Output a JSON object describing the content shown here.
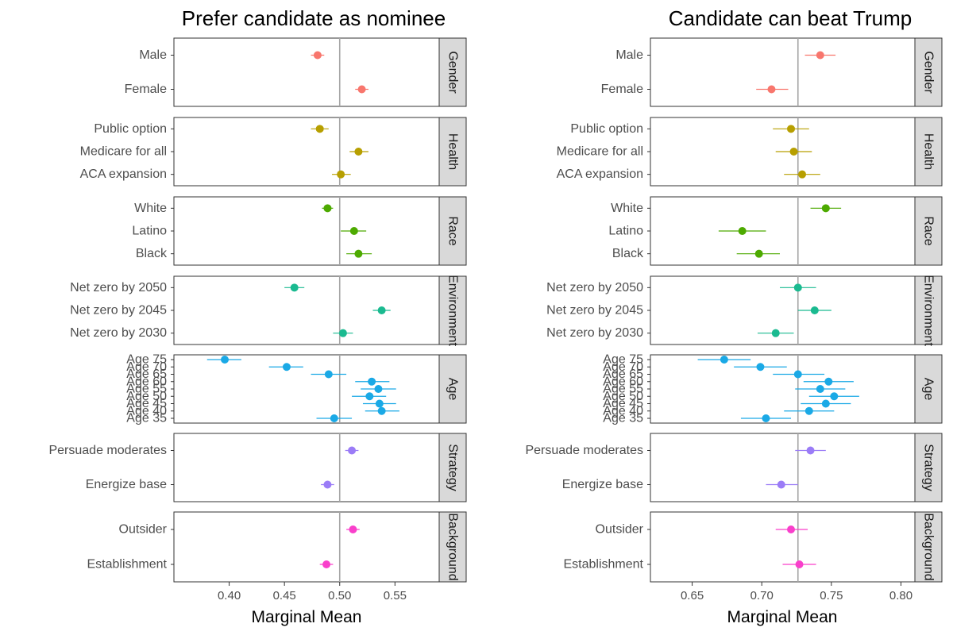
{
  "chart_data": [
    {
      "type": "scatter",
      "title": "Prefer candidate as nominee",
      "xlabel": "Marginal Mean",
      "ylabel": "",
      "xlim": [
        0.35,
        0.59
      ],
      "xticks": [
        0.4,
        0.45,
        0.5,
        0.55
      ],
      "xtick_labels": [
        "0.40",
        "0.45",
        "0.50",
        "0.55"
      ],
      "reference_line": 0.5,
      "grid": false,
      "facets": [
        {
          "name": "Gender",
          "color": "#F8766D",
          "levels": [
            {
              "label": "Male",
              "mean": 0.48,
              "lo": 0.474,
              "hi": 0.486
            },
            {
              "label": "Female",
              "mean": 0.52,
              "lo": 0.514,
              "hi": 0.526
            }
          ]
        },
        {
          "name": "Health",
          "color": "#B79F00",
          "levels": [
            {
              "label": "Public option",
              "mean": 0.482,
              "lo": 0.474,
              "hi": 0.49
            },
            {
              "label": "Medicare for all",
              "mean": 0.517,
              "lo": 0.509,
              "hi": 0.526
            },
            {
              "label": "ACA expansion",
              "mean": 0.501,
              "lo": 0.493,
              "hi": 0.51
            }
          ]
        },
        {
          "name": "Race",
          "color": "#4DAA00",
          "levels": [
            {
              "label": "White",
              "mean": 0.489,
              "lo": 0.484,
              "hi": 0.494
            },
            {
              "label": "Latino",
              "mean": 0.513,
              "lo": 0.501,
              "hi": 0.524
            },
            {
              "label": "Black",
              "mean": 0.517,
              "lo": 0.506,
              "hi": 0.529
            }
          ]
        },
        {
          "name": "Environment",
          "color": "#1ABA90",
          "levels": [
            {
              "label": "Net zero by 2050",
              "mean": 0.459,
              "lo": 0.45,
              "hi": 0.468
            },
            {
              "label": "Net zero by 2045",
              "mean": 0.538,
              "lo": 0.53,
              "hi": 0.546
            },
            {
              "label": "Net zero by 2030",
              "mean": 0.503,
              "lo": 0.494,
              "hi": 0.512
            }
          ]
        },
        {
          "name": "Age",
          "color": "#1AA9E6",
          "levels": [
            {
              "label": "Age 75",
              "mean": 0.396,
              "lo": 0.38,
              "hi": 0.411
            },
            {
              "label": "Age 70",
              "mean": 0.452,
              "lo": 0.436,
              "hi": 0.467
            },
            {
              "label": "Age 65",
              "mean": 0.49,
              "lo": 0.474,
              "hi": 0.506
            },
            {
              "label": "Age 60",
              "mean": 0.529,
              "lo": 0.514,
              "hi": 0.545
            },
            {
              "label": "Age 55",
              "mean": 0.535,
              "lo": 0.519,
              "hi": 0.551
            },
            {
              "label": "Age 50",
              "mean": 0.527,
              "lo": 0.511,
              "hi": 0.542
            },
            {
              "label": "Age 45",
              "mean": 0.536,
              "lo": 0.521,
              "hi": 0.551
            },
            {
              "label": "Age 40",
              "mean": 0.538,
              "lo": 0.523,
              "hi": 0.554
            },
            {
              "label": "Age 35",
              "mean": 0.495,
              "lo": 0.479,
              "hi": 0.511
            }
          ]
        },
        {
          "name": "Strategy",
          "color": "#9B7CF7",
          "levels": [
            {
              "label": "Persuade moderates",
              "mean": 0.511,
              "lo": 0.505,
              "hi": 0.517
            },
            {
              "label": "Energize base",
              "mean": 0.489,
              "lo": 0.483,
              "hi": 0.495
            }
          ]
        },
        {
          "name": "Background",
          "color": "#F93FCB",
          "levels": [
            {
              "label": "Outsider",
              "mean": 0.512,
              "lo": 0.506,
              "hi": 0.518
            },
            {
              "label": "Establishment",
              "mean": 0.488,
              "lo": 0.482,
              "hi": 0.494
            }
          ]
        }
      ]
    },
    {
      "type": "scatter",
      "title": "Candidate can beat Trump",
      "xlabel": "Marginal Mean",
      "ylabel": "",
      "xlim": [
        0.62,
        0.81
      ],
      "xticks": [
        0.65,
        0.7,
        0.75,
        0.8
      ],
      "xtick_labels": [
        "0.65",
        "0.70",
        "0.75",
        "0.80"
      ],
      "reference_line": 0.726,
      "grid": false,
      "facets": [
        {
          "name": "Gender",
          "color": "#F8766D",
          "levels": [
            {
              "label": "Male",
              "mean": 0.742,
              "lo": 0.731,
              "hi": 0.753
            },
            {
              "label": "Female",
              "mean": 0.707,
              "lo": 0.696,
              "hi": 0.719
            }
          ]
        },
        {
          "name": "Health",
          "color": "#B79F00",
          "levels": [
            {
              "label": "Public option",
              "mean": 0.721,
              "lo": 0.708,
              "hi": 0.734
            },
            {
              "label": "Medicare for all",
              "mean": 0.723,
              "lo": 0.71,
              "hi": 0.736
            },
            {
              "label": "ACA expansion",
              "mean": 0.729,
              "lo": 0.716,
              "hi": 0.742
            }
          ]
        },
        {
          "name": "Race",
          "color": "#4DAA00",
          "levels": [
            {
              "label": "White",
              "mean": 0.746,
              "lo": 0.735,
              "hi": 0.757
            },
            {
              "label": "Latino",
              "mean": 0.686,
              "lo": 0.669,
              "hi": 0.703
            },
            {
              "label": "Black",
              "mean": 0.698,
              "lo": 0.682,
              "hi": 0.713
            }
          ]
        },
        {
          "name": "Environment",
          "color": "#1ABA90",
          "levels": [
            {
              "label": "Net zero by 2050",
              "mean": 0.726,
              "lo": 0.713,
              "hi": 0.739
            },
            {
              "label": "Net zero by 2045",
              "mean": 0.738,
              "lo": 0.726,
              "hi": 0.75
            },
            {
              "label": "Net zero by 2030",
              "mean": 0.71,
              "lo": 0.697,
              "hi": 0.723
            }
          ]
        },
        {
          "name": "Age",
          "color": "#1AA9E6",
          "levels": [
            {
              "label": "Age 75",
              "mean": 0.673,
              "lo": 0.654,
              "hi": 0.692
            },
            {
              "label": "Age 70",
              "mean": 0.699,
              "lo": 0.68,
              "hi": 0.718
            },
            {
              "label": "Age 65",
              "mean": 0.726,
              "lo": 0.708,
              "hi": 0.745
            },
            {
              "label": "Age 60",
              "mean": 0.748,
              "lo": 0.73,
              "hi": 0.766
            },
            {
              "label": "Age 55",
              "mean": 0.742,
              "lo": 0.724,
              "hi": 0.76
            },
            {
              "label": "Age 50",
              "mean": 0.752,
              "lo": 0.734,
              "hi": 0.77
            },
            {
              "label": "Age 45",
              "mean": 0.746,
              "lo": 0.728,
              "hi": 0.764
            },
            {
              "label": "Age 40",
              "mean": 0.734,
              "lo": 0.716,
              "hi": 0.752
            },
            {
              "label": "Age 35",
              "mean": 0.703,
              "lo": 0.685,
              "hi": 0.721
            }
          ]
        },
        {
          "name": "Strategy",
          "color": "#9B7CF7",
          "levels": [
            {
              "label": "Persuade moderates",
              "mean": 0.735,
              "lo": 0.724,
              "hi": 0.746
            },
            {
              "label": "Energize base",
              "mean": 0.714,
              "lo": 0.703,
              "hi": 0.726
            }
          ]
        },
        {
          "name": "Background",
          "color": "#F93FCB",
          "levels": [
            {
              "label": "Outsider",
              "mean": 0.721,
              "lo": 0.71,
              "hi": 0.733
            },
            {
              "label": "Establishment",
              "mean": 0.727,
              "lo": 0.715,
              "hi": 0.739
            }
          ]
        }
      ]
    }
  ],
  "colors": {
    "panel_border": "#333333",
    "strip_fill": "#d9d9d9",
    "reference_line": "#a6a6a6"
  }
}
